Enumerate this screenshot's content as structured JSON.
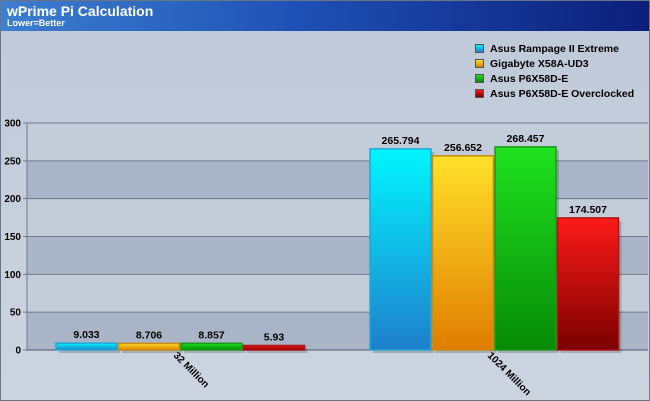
{
  "header": {
    "title": "wPrime Pi Calculation",
    "subtitle": "Lower=Better"
  },
  "colors": {
    "header_gradient": [
      "#3d7fd0",
      "#0c1e7a"
    ],
    "band_dark": "#a9b5c7",
    "band_light": "#c3ccd9",
    "axis": "#6f7a8a"
  },
  "chart_data": {
    "type": "bar",
    "title": "wPrime Pi Calculation",
    "subtitle": "Lower=Better",
    "xlabel": "",
    "ylabel": "",
    "categories": [
      "32 Million",
      "1024 Million"
    ],
    "ylim": [
      0,
      300
    ],
    "yticks": [
      0,
      50,
      100,
      150,
      200,
      250,
      300
    ],
    "grid": true,
    "legend_position": "top-right",
    "series": [
      {
        "name": "Asus Rampage II Extreme",
        "values": [
          9.033,
          265.794
        ],
        "labels": [
          "9.033",
          "265.794"
        ],
        "color_top": "#00f6ff",
        "color_bottom": "#1f7fcc",
        "outline": "#1fa8d8"
      },
      {
        "name": "Gigabyte X58A-UD3",
        "values": [
          8.706,
          256.652
        ],
        "labels": [
          "8.706",
          "256.652"
        ],
        "color_top": "#ffe12a",
        "color_bottom": "#e07d00",
        "outline": "#c98b10"
      },
      {
        "name": "Asus P6X58D-E",
        "values": [
          8.857,
          268.457
        ],
        "labels": [
          "8.857",
          "268.457"
        ],
        "color_top": "#1fe21f",
        "color_bottom": "#078a07",
        "outline": "#1a9a1a"
      },
      {
        "name": "Asus P6X58D-E Overclocked",
        "values": [
          5.93,
          174.507
        ],
        "labels": [
          "5.93",
          "174.507"
        ],
        "color_top": "#ff1a1a",
        "color_bottom": "#7a0000",
        "outline": "#b01010"
      }
    ]
  }
}
